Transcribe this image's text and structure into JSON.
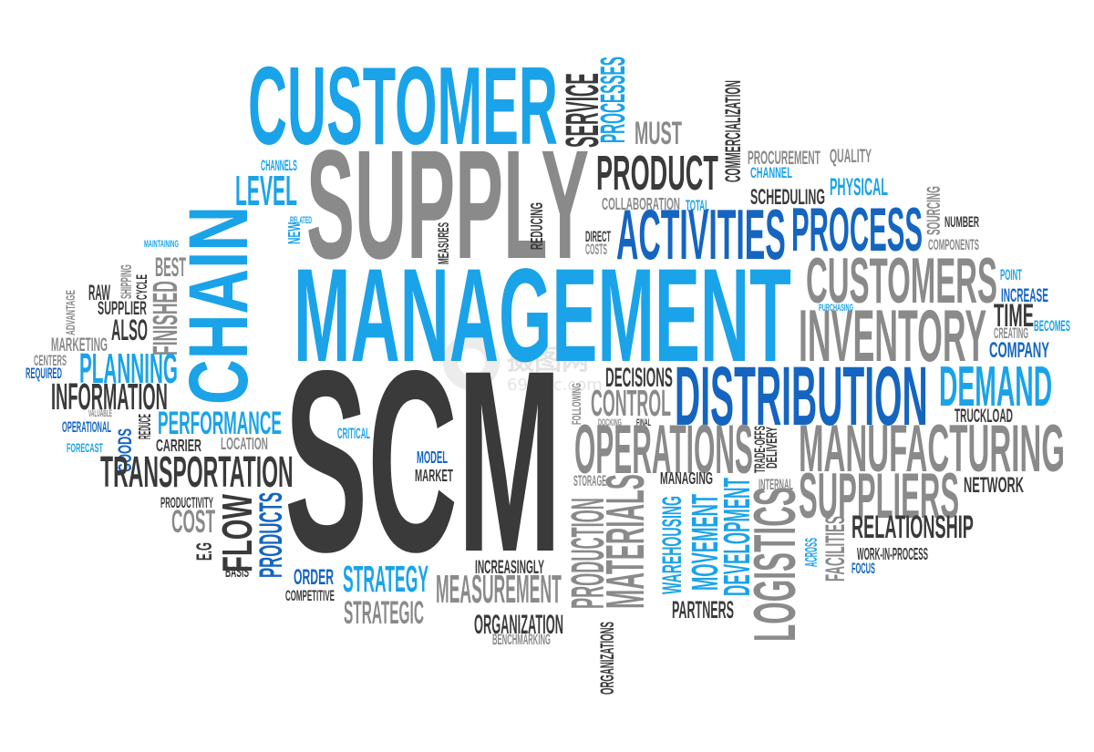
{
  "colors": {
    "dark": "#3a3a3a",
    "grey": "#8a8a8a",
    "light_blue": "#1aa3e8",
    "blue": "#1565c0"
  },
  "watermark": {
    "text": "摄图网",
    "url": "699pic.com"
  },
  "words": [
    {
      "t": "CUSTOMER",
      "c": "light_blue"
    },
    {
      "t": "SERVICE",
      "c": "dark"
    },
    {
      "t": "PROCESSES",
      "c": "light_blue"
    },
    {
      "t": "MUST",
      "c": "grey"
    },
    {
      "t": "COMMERCIALIZATION",
      "c": "dark"
    },
    {
      "t": "SUPPLY",
      "c": "grey"
    },
    {
      "t": "PRODUCT",
      "c": "dark"
    },
    {
      "t": "PROCUREMENT",
      "c": "grey"
    },
    {
      "t": "QUALITY",
      "c": "grey"
    },
    {
      "t": "CHANNEL",
      "c": "light_blue"
    },
    {
      "t": "PHYSICAL",
      "c": "light_blue"
    },
    {
      "t": "SCHEDULING",
      "c": "dark"
    },
    {
      "t": "SOURCING",
      "c": "grey"
    },
    {
      "t": "CHANNELS",
      "c": "light_blue"
    },
    {
      "t": "LEVEL",
      "c": "light_blue"
    },
    {
      "t": "COLLABORATION",
      "c": "grey"
    },
    {
      "t": "TOTAL",
      "c": "light_blue"
    },
    {
      "t": "NUMBER",
      "c": "dark"
    },
    {
      "t": "REDUCING",
      "c": "dark"
    },
    {
      "t": "NEW",
      "c": "light_blue"
    },
    {
      "t": "RELATED",
      "c": "light_blue"
    },
    {
      "t": "MEASURES",
      "c": "dark"
    },
    {
      "t": "DIRECT",
      "c": "dark"
    },
    {
      "t": "COSTS",
      "c": "grey"
    },
    {
      "t": "ACTIVITIES",
      "c": "blue"
    },
    {
      "t": "PROCESS",
      "c": "blue"
    },
    {
      "t": "COMPONENTS",
      "c": "grey"
    },
    {
      "t": "MAINTAINING",
      "c": "light_blue"
    },
    {
      "t": "CHAIN",
      "c": "light_blue"
    },
    {
      "t": "MANAGEMENT",
      "c": "light_blue"
    },
    {
      "t": "CUSTOMERS",
      "c": "grey"
    },
    {
      "t": "POINT",
      "c": "light_blue"
    },
    {
      "t": "BEST",
      "c": "grey"
    },
    {
      "t": "SHIPPING",
      "c": "grey"
    },
    {
      "t": "CYCLE",
      "c": "dark"
    },
    {
      "t": "ADVANTAGE",
      "c": "grey"
    },
    {
      "t": "RAW",
      "c": "dark"
    },
    {
      "t": "SUPPLIER",
      "c": "dark"
    },
    {
      "t": "FINISHED",
      "c": "grey"
    },
    {
      "t": "INCREASE",
      "c": "blue"
    },
    {
      "t": "PURCHASING",
      "c": "light_blue"
    },
    {
      "t": "TIME",
      "c": "dark"
    },
    {
      "t": "BECOMES",
      "c": "light_blue"
    },
    {
      "t": "ALSO",
      "c": "dark"
    },
    {
      "t": "MARKETING",
      "c": "grey"
    },
    {
      "t": "INVENTORY",
      "c": "grey"
    },
    {
      "t": "CREATING",
      "c": "grey"
    },
    {
      "t": "COMPANY",
      "c": "blue"
    },
    {
      "t": "CENTERS",
      "c": "grey"
    },
    {
      "t": "REQUIRED",
      "c": "blue"
    },
    {
      "t": "PLANNING",
      "c": "light_blue"
    },
    {
      "t": "DECISIONS",
      "c": "dark"
    },
    {
      "t": "INFORMATION",
      "c": "dark"
    },
    {
      "t": "FOLLOWING",
      "c": "grey"
    },
    {
      "t": "CONTROL",
      "c": "grey"
    },
    {
      "t": "DISTRIBUTION",
      "c": "blue"
    },
    {
      "t": "DEMAND",
      "c": "light_blue"
    },
    {
      "t": "SCM",
      "c": "dark"
    },
    {
      "t": "VALUABLE",
      "c": "grey"
    },
    {
      "t": "REDUCE",
      "c": "dark"
    },
    {
      "t": "OPERATIONAL",
      "c": "blue"
    },
    {
      "t": "GOODS",
      "c": "blue"
    },
    {
      "t": "PERFORMANCE",
      "c": "light_blue"
    },
    {
      "t": "DOCKING",
      "c": "grey"
    },
    {
      "t": "FINAL",
      "c": "dark"
    },
    {
      "t": "TRUCKLOAD",
      "c": "dark"
    },
    {
      "t": "CRITICAL",
      "c": "light_blue"
    },
    {
      "t": "FORECAST",
      "c": "light_blue"
    },
    {
      "t": "CARRIER",
      "c": "dark"
    },
    {
      "t": "LOCATION",
      "c": "grey"
    },
    {
      "t": "OPERATIONS",
      "c": "grey"
    },
    {
      "t": "TRADE-OFFS",
      "c": "dark"
    },
    {
      "t": "DELIVERY",
      "c": "dark"
    },
    {
      "t": "MANUFACTURING",
      "c": "grey"
    },
    {
      "t": "TRANSPORTATION",
      "c": "dark"
    },
    {
      "t": "MODEL",
      "c": "blue"
    },
    {
      "t": "MARKET",
      "c": "dark"
    },
    {
      "t": "STORAGE",
      "c": "grey"
    },
    {
      "t": "MANAGING",
      "c": "dark"
    },
    {
      "t": "INTERNAL",
      "c": "grey"
    },
    {
      "t": "SUPPLIERS",
      "c": "grey"
    },
    {
      "t": "NETWORK",
      "c": "dark"
    },
    {
      "t": "PRODUCTIVITY",
      "c": "dark"
    },
    {
      "t": "COST",
      "c": "grey"
    },
    {
      "t": "FLOW",
      "c": "dark"
    },
    {
      "t": "PRODUCTS",
      "c": "blue"
    },
    {
      "t": "PRODUCTION",
      "c": "grey"
    },
    {
      "t": "MATERIALS",
      "c": "grey"
    },
    {
      "t": "WAREHOUSING",
      "c": "light_blue"
    },
    {
      "t": "MOVEMENT",
      "c": "light_blue"
    },
    {
      "t": "DEVELOPMENT",
      "c": "light_blue"
    },
    {
      "t": "LOGISTICS",
      "c": "grey"
    },
    {
      "t": "RELATIONSHIP",
      "c": "dark"
    },
    {
      "t": "FACILITIES",
      "c": "grey"
    },
    {
      "t": "ACROSS",
      "c": "light_blue"
    },
    {
      "t": "E.G",
      "c": "dark"
    },
    {
      "t": "WORK-IN-PROCESS",
      "c": "dark"
    },
    {
      "t": "FOCUS",
      "c": "blue"
    },
    {
      "t": "BASIS",
      "c": "dark"
    },
    {
      "t": "ORDER",
      "c": "blue"
    },
    {
      "t": "STRATEGY",
      "c": "light_blue"
    },
    {
      "t": "INCREASINGLY",
      "c": "dark"
    },
    {
      "t": "COMPETITIVE",
      "c": "dark"
    },
    {
      "t": "MEASUREMENT",
      "c": "grey"
    },
    {
      "t": "STRATEGIC",
      "c": "grey"
    },
    {
      "t": "PARTNERS",
      "c": "dark"
    },
    {
      "t": "ORGANIZATION",
      "c": "dark"
    },
    {
      "t": "ORGANIZATIONS",
      "c": "dark"
    },
    {
      "t": "BENCHMARKING",
      "c": "grey"
    }
  ]
}
